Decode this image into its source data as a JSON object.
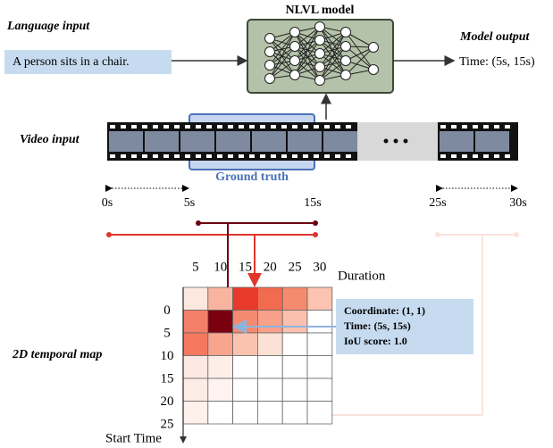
{
  "language_input": {
    "label": "Language input",
    "query": "A person sits in a chair."
  },
  "model": {
    "label": "NLVL model"
  },
  "model_output": {
    "label": "Model output",
    "text": "Time: (5s, 15s)"
  },
  "video_input": {
    "label": "Video input",
    "ground_truth": "Ground truth"
  },
  "timeline": [
    "0s",
    "5s",
    "15s",
    "25s",
    "30s"
  ],
  "temporal_map": {
    "label": "2D temporal map",
    "columns": [
      "5",
      "10",
      "15",
      "20",
      "25",
      "30"
    ],
    "column_axis": "Duration",
    "rows": [
      "0",
      "5",
      "10",
      "15",
      "20",
      "25"
    ],
    "row_axis": "Start Time",
    "callout": [
      "Coordinate: (1, 1)",
      "Time: (5s, 15s)",
      "IoU score: 1.0"
    ]
  }
}
